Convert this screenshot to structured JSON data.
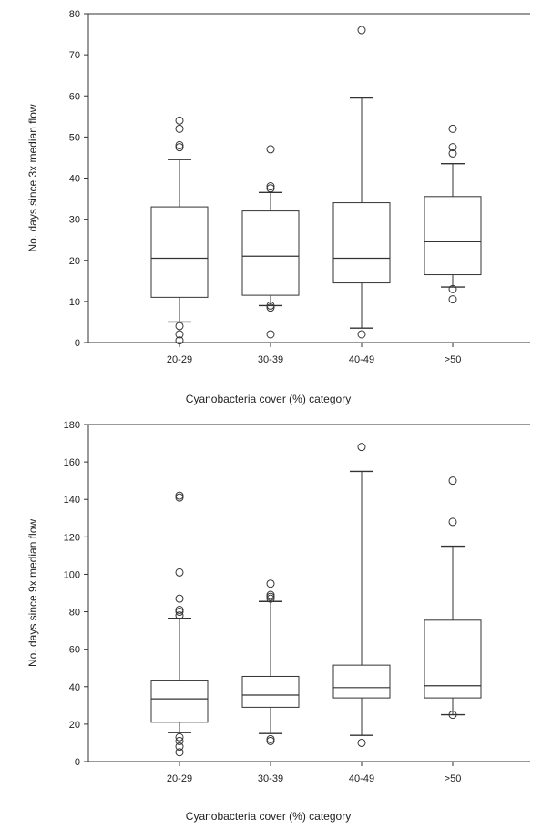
{
  "chart_data": [
    {
      "type": "box",
      "xlabel": "Cyanobacteria cover (%) category",
      "ylabel": "No. days since 3x median flow",
      "ylim": [
        0,
        80
      ],
      "yticks": [
        0,
        10,
        20,
        30,
        40,
        50,
        60,
        70,
        80
      ],
      "categories": [
        "20-29",
        "30-39",
        "40-49",
        ">50"
      ],
      "boxes": [
        {
          "category": "20-29",
          "whisker_low": 5,
          "q1": 11,
          "median": 20.5,
          "q3": 33,
          "whisker_high": 44.5,
          "outliers": [
            0.5,
            2,
            4,
            47.5,
            48,
            52,
            54
          ]
        },
        {
          "category": "30-39",
          "whisker_low": 9,
          "q1": 11.5,
          "median": 21,
          "q3": 32,
          "whisker_high": 36.5,
          "outliers": [
            2,
            8.5,
            9,
            37.5,
            38,
            47
          ]
        },
        {
          "category": "40-49",
          "whisker_low": 3.5,
          "q1": 14.5,
          "median": 20.5,
          "q3": 34,
          "whisker_high": 59.5,
          "outliers": [
            2,
            76
          ]
        },
        {
          "category": ">50",
          "whisker_low": 13.5,
          "q1": 16.5,
          "median": 24.5,
          "q3": 35.5,
          "whisker_high": 43.5,
          "outliers": [
            10.5,
            13,
            46,
            47.5,
            52
          ]
        }
      ],
      "grid": false
    },
    {
      "type": "box",
      "xlabel": "Cyanobacteria cover (%) category",
      "ylabel": "No. days since 9x median flow",
      "ylim": [
        0,
        180
      ],
      "yticks": [
        0,
        20,
        40,
        60,
        80,
        100,
        120,
        140,
        160,
        180
      ],
      "categories": [
        "20-29",
        "30-39",
        "40-49",
        ">50"
      ],
      "boxes": [
        {
          "category": "20-29",
          "whisker_low": 15.5,
          "q1": 21,
          "median": 33.5,
          "q3": 43.5,
          "whisker_high": 76.5,
          "outliers": [
            5,
            8,
            11,
            13,
            78,
            80,
            81,
            87,
            101,
            141,
            142
          ]
        },
        {
          "category": "30-39",
          "whisker_low": 15,
          "q1": 29,
          "median": 35.5,
          "q3": 45.5,
          "whisker_high": 85.5,
          "outliers": [
            11,
            12,
            87,
            88,
            89,
            95
          ]
        },
        {
          "category": "40-49",
          "whisker_low": 14,
          "q1": 34,
          "median": 39.5,
          "q3": 51.5,
          "whisker_high": 155,
          "outliers": [
            10,
            168
          ]
        },
        {
          "category": ">50",
          "whisker_low": 25,
          "q1": 34,
          "median": 40.5,
          "q3": 75.5,
          "whisker_high": 115,
          "outliers": [
            25,
            128,
            150
          ]
        }
      ],
      "grid": false
    }
  ]
}
